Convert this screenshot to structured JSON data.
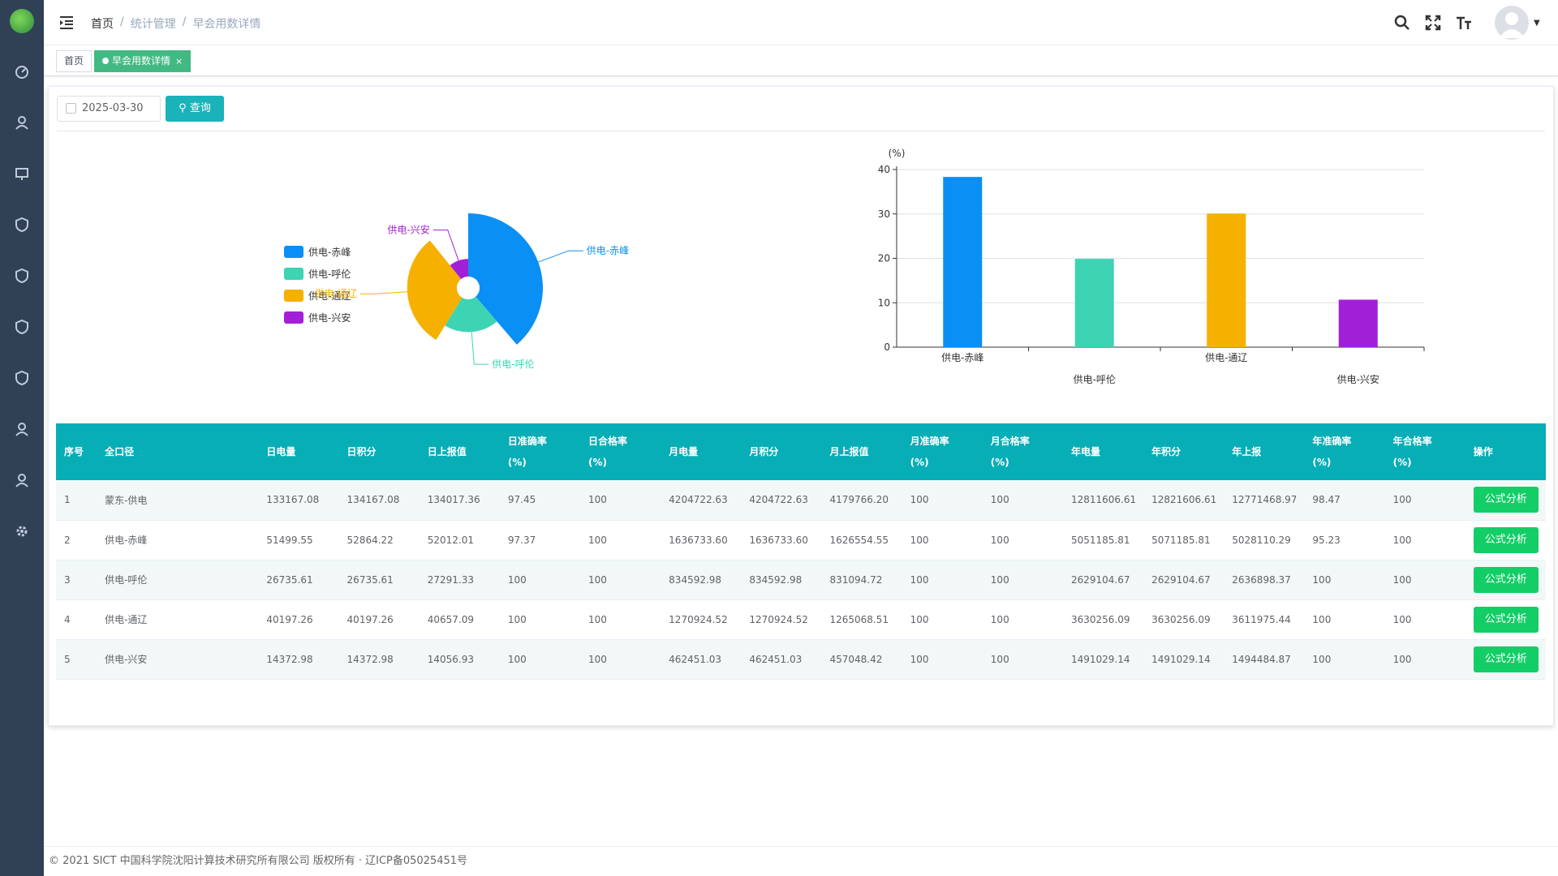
{
  "breadcrumb": [
    "首页",
    "统计管理",
    "早会用数详情"
  ],
  "tags": {
    "home": "首页",
    "current": "早会用数详情",
    "close": "×"
  },
  "filter": {
    "date": "2025-03-30",
    "query_label": "查询"
  },
  "pie": {
    "legend": [
      "供电-赤峰",
      "供电-呼伦",
      "供电-通辽",
      "供电-兴安"
    ],
    "colors": [
      "#0a8ff5",
      "#3dd4b3",
      "#f5b000",
      "#a21fd8"
    ],
    "values": [
      38.33,
      19.88,
      30.08,
      10.69
    ]
  },
  "chart_data": {
    "type": "bar",
    "categories": [
      "供电-赤峰",
      "供电-呼伦",
      "供电-通辽",
      "供电-兴安"
    ],
    "values": [
      38.33,
      19.88,
      30.08,
      10.69
    ],
    "colors": [
      "#0a8ff5",
      "#3dd4b3",
      "#f5b000",
      "#a21fd8"
    ],
    "ylabel": "(%)",
    "ylim": [
      0,
      40
    ],
    "yticks": [
      0,
      10,
      20,
      30,
      40
    ],
    "grid": true
  },
  "table": {
    "headers": [
      "序号",
      "全口径",
      "日电量",
      "日积分",
      "日上报值",
      "日准确率\n(%)",
      "日合格率\n(%)",
      "月电量",
      "月积分",
      "月上报值",
      "月准确率\n(%)",
      "月合格率\n(%)",
      "年电量",
      "年积分",
      "年上报",
      "年准确率\n(%)",
      "年合格率\n(%)",
      "操作"
    ],
    "rows": [
      [
        "1",
        "蒙东-供电",
        "133167.08",
        "134167.08",
        "134017.36",
        "97.45",
        "100",
        "4204722.63",
        "4204722.63",
        "4179766.20",
        "100",
        "100",
        "12811606.61",
        "12821606.61",
        "12771468.97",
        "98.47",
        "100"
      ],
      [
        "2",
        "供电-赤峰",
        "51499.55",
        "52864.22",
        "52012.01",
        "97.37",
        "100",
        "1636733.60",
        "1636733.60",
        "1626554.55",
        "100",
        "100",
        "5051185.81",
        "5071185.81",
        "5028110.29",
        "95.23",
        "100"
      ],
      [
        "3",
        "供电-呼伦",
        "26735.61",
        "26735.61",
        "27291.33",
        "100",
        "100",
        "834592.98",
        "834592.98",
        "831094.72",
        "100",
        "100",
        "2629104.67",
        "2629104.67",
        "2636898.37",
        "100",
        "100"
      ],
      [
        "4",
        "供电-通辽",
        "40197.26",
        "40197.26",
        "40657.09",
        "100",
        "100",
        "1270924.52",
        "1270924.52",
        "1265068.51",
        "100",
        "100",
        "3630256.09",
        "3630256.09",
        "3611975.44",
        "100",
        "100"
      ],
      [
        "5",
        "供电-兴安",
        "14372.98",
        "14372.98",
        "14056.93",
        "100",
        "100",
        "462451.03",
        "462451.03",
        "457048.42",
        "100",
        "100",
        "1491029.14",
        "1491029.14",
        "1494484.87",
        "100",
        "100"
      ]
    ],
    "action_label": "公式分析"
  },
  "footer": "© 2021 SICT 中国科学院沈阳计算技术研究所有限公司 版权所有 · 辽ICP备05025451号"
}
